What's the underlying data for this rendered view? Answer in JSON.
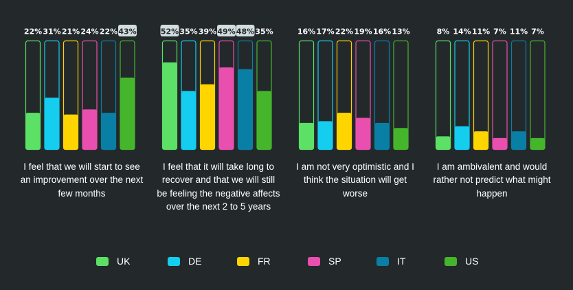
{
  "chart_data": {
    "type": "bar",
    "ylim": [
      0,
      100
    ],
    "series_names": [
      "UK",
      "DE",
      "FR",
      "SP",
      "IT",
      "US"
    ],
    "colors": {
      "UK": "#5ce065",
      "DE": "#14cdef",
      "FR": "#ffd500",
      "SP": "#e94fae",
      "IT": "#0a7fa6",
      "US": "#45b62c"
    },
    "groups": [
      {
        "label": "I feel that we will start to see an improvement over the next few months",
        "values": [
          22,
          31,
          21,
          24,
          22,
          43
        ],
        "value_labels": [
          "22%",
          "31%",
          "21%",
          "24%",
          "22%",
          "43%"
        ],
        "highlight": [
          false,
          false,
          false,
          false,
          false,
          true
        ]
      },
      {
        "label": "I feel that it will take long to recover and that we will still be feeling the negative affects over the next 2 to 5 years",
        "values": [
          52,
          35,
          39,
          49,
          48,
          35
        ],
        "value_labels": [
          "52%",
          "35%",
          "39%",
          "49%",
          "48%",
          "35%"
        ],
        "highlight": [
          true,
          false,
          false,
          true,
          true,
          false
        ]
      },
      {
        "label": "I am not very optimistic and I think the situation will get worse",
        "values": [
          16,
          17,
          22,
          19,
          16,
          13
        ],
        "value_labels": [
          "16%",
          "17%",
          "22%",
          "19%",
          "16%",
          "13%"
        ],
        "highlight": [
          false,
          false,
          false,
          false,
          false,
          false
        ]
      },
      {
        "label": "I am ambivalent and would rather not predict what might happen",
        "values": [
          8,
          14,
          11,
          7,
          11,
          7
        ],
        "value_labels": [
          "8%",
          "14%",
          "11%",
          "7%",
          "11%",
          "7%"
        ],
        "highlight": [
          false,
          false,
          false,
          false,
          false,
          false
        ]
      }
    ]
  },
  "captions": [
    "I feel that we will start to see an improvement over the next few months",
    "I feel that it will take long to recover and that we will still be feeling the negative affects over the next 2 to 5 years",
    "I am not very optimistic and I think the situation will get worse",
    "I am ambivalent and would rather not predict what might happen"
  ],
  "legend": [
    {
      "label": "UK",
      "color": "#5ce065"
    },
    {
      "label": "DE",
      "color": "#14cdef"
    },
    {
      "label": "FR",
      "color": "#ffd500"
    },
    {
      "label": "SP",
      "color": "#e94fae"
    },
    {
      "label": "IT",
      "color": "#0a7fa6"
    },
    {
      "label": "US",
      "color": "#45b62c"
    }
  ]
}
